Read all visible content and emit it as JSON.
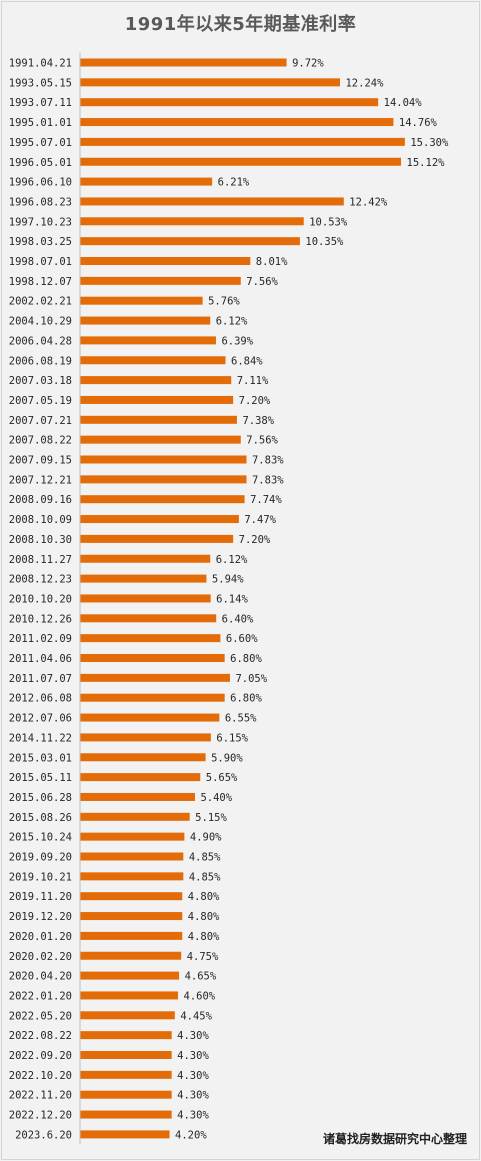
{
  "chart_data": {
    "type": "bar",
    "orientation": "horizontal",
    "title": "1991年以来5年期基准利率",
    "watermark": "诸葛找房数据研究中心整理",
    "bar_color": "#e36c09",
    "background_color": "#f2f2f2",
    "grid": false,
    "legend": "none",
    "categories": [
      "1991.04.21",
      "1993.05.15",
      "1993.07.11",
      "1995.01.01",
      "1995.07.01",
      "1996.05.01",
      "1996.06.10",
      "1996.08.23",
      "1997.10.23",
      "1998.03.25",
      "1998.07.01",
      "1998.12.07",
      "2002.02.21",
      "2004.10.29",
      "2006.04.28",
      "2006.08.19",
      "2007.03.18",
      "2007.05.19",
      "2007.07.21",
      "2007.08.22",
      "2007.09.15",
      "2007.12.21",
      "2008.09.16",
      "2008.10.09",
      "2008.10.30",
      "2008.11.27",
      "2008.12.23",
      "2010.10.20",
      "2010.12.26",
      "2011.02.09",
      "2011.04.06",
      "2011.07.07",
      "2012.06.08",
      "2012.07.06",
      "2014.11.22",
      "2015.03.01",
      "2015.05.11",
      "2015.06.28",
      "2015.08.26",
      "2015.10.24",
      "2019.09.20",
      "2019.10.21",
      "2019.11.20",
      "2019.12.20",
      "2020.01.20",
      "2020.02.20",
      "2020.04.20",
      "2022.01.20",
      "2022.05.20",
      "2022.08.22",
      "2022.09.20",
      "2022.10.20",
      "2022.11.20",
      "2022.12.20",
      "2023.6.20"
    ],
    "values": [
      9.72,
      12.24,
      14.04,
      14.76,
      15.3,
      15.12,
      6.21,
      12.42,
      10.53,
      10.35,
      8.01,
      7.56,
      5.76,
      6.12,
      6.39,
      6.84,
      7.11,
      7.2,
      7.38,
      7.56,
      7.83,
      7.83,
      7.74,
      7.47,
      7.2,
      6.12,
      5.94,
      6.14,
      6.4,
      6.6,
      6.8,
      7.05,
      6.8,
      6.55,
      6.15,
      5.9,
      5.65,
      5.4,
      5.15,
      4.9,
      4.85,
      4.85,
      4.8,
      4.8,
      4.8,
      4.75,
      4.65,
      4.6,
      4.45,
      4.3,
      4.3,
      4.3,
      4.3,
      4.3,
      4.2
    ],
    "value_labels": [
      "9.72%",
      "12.24%",
      "14.04%",
      "14.76%",
      "15.30%",
      "15.12%",
      "6.21%",
      "12.42%",
      "10.53%",
      "10.35%",
      "8.01%",
      "7.56%",
      "5.76%",
      "6.12%",
      "6.39%",
      "6.84%",
      "7.11%",
      "7.20%",
      "7.38%",
      "7.56%",
      "7.83%",
      "7.83%",
      "7.74%",
      "7.47%",
      "7.20%",
      "6.12%",
      "5.94%",
      "6.14%",
      "6.40%",
      "6.60%",
      "6.80%",
      "7.05%",
      "6.80%",
      "6.55%",
      "6.15%",
      "5.90%",
      "5.65%",
      "5.40%",
      "5.15%",
      "4.90%",
      "4.85%",
      "4.85%",
      "4.80%",
      "4.80%",
      "4.80%",
      "4.75%",
      "4.65%",
      "4.60%",
      "4.45%",
      "4.30%",
      "4.30%",
      "4.30%",
      "4.30%",
      "4.30%",
      "4.20%"
    ]
  }
}
